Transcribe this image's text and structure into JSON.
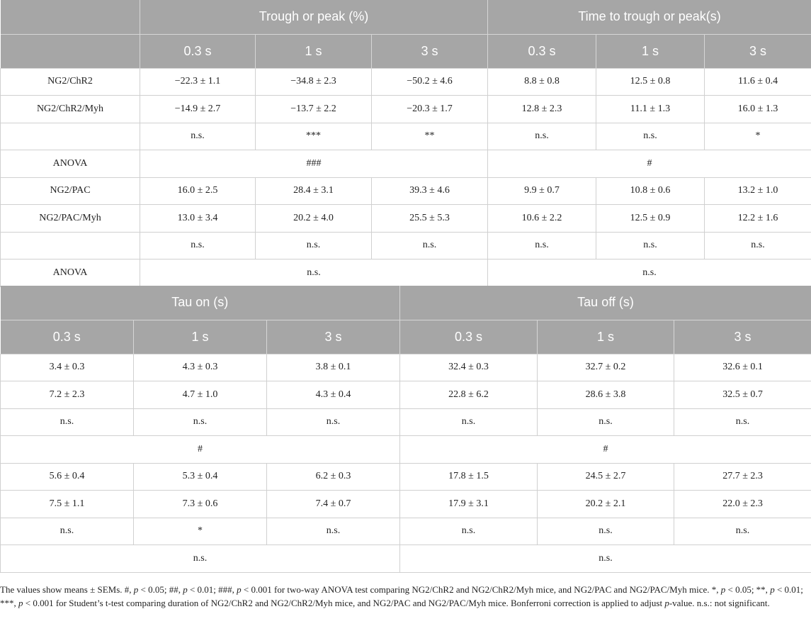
{
  "top_table": {
    "group_headers": [
      "Trough or peak (%)",
      "Time to trough or peak(s)"
    ],
    "sub_headers": [
      "0.3 s",
      "1 s",
      "3 s",
      "0.3 s",
      "1 s",
      "3 s"
    ],
    "rows": [
      {
        "label": "NG2/ChR2",
        "cells": [
          "−22.3 ± 1.1",
          "−34.8 ± 2.3",
          "−50.2 ± 4.6",
          "8.8 ± 0.8",
          "12.5 ± 0.8",
          "11.6 ± 0.4"
        ]
      },
      {
        "label": "NG2/ChR2/Myh",
        "cells": [
          "−14.9 ± 2.7",
          "−13.7 ± 2.2",
          "−20.3 ± 1.7",
          "12.8 ± 2.3",
          "11.1 ± 1.3",
          "16.0 ± 1.3"
        ]
      },
      {
        "label": "",
        "cells": [
          "n.s.",
          "***",
          "**",
          "n.s.",
          "n.s.",
          "*"
        ]
      },
      {
        "label": "ANOVA",
        "span_cells": [
          "###",
          "#"
        ]
      },
      {
        "label": "NG2/PAC",
        "cells": [
          "16.0 ± 2.5",
          "28.4 ± 3.1",
          "39.3 ± 4.6",
          "9.9 ± 0.7",
          "10.8 ± 0.6",
          "13.2 ± 1.0"
        ]
      },
      {
        "label": "NG2/PAC/Myh",
        "cells": [
          "13.0 ± 3.4",
          "20.2 ± 4.0",
          "25.5 ± 5.3",
          "10.6 ± 2.2",
          "12.5 ± 0.9",
          "12.2 ± 1.6"
        ]
      },
      {
        "label": "",
        "cells": [
          "n.s.",
          "n.s.",
          "n.s.",
          "n.s.",
          "n.s.",
          "n.s."
        ]
      },
      {
        "label": "ANOVA",
        "span_cells": [
          "n.s.",
          "n.s."
        ]
      }
    ]
  },
  "bottom_table": {
    "group_headers": [
      "Tau on (s)",
      "Tau off (s)"
    ],
    "sub_headers": [
      "0.3 s",
      "1 s",
      "3 s",
      "0.3 s",
      "1 s",
      "3 s"
    ],
    "rows": [
      {
        "cells": [
          "3.4 ± 0.3",
          "4.3 ± 0.3",
          "3.8 ± 0.1",
          "32.4 ± 0.3",
          "32.7 ± 0.2",
          "32.6 ± 0.1"
        ]
      },
      {
        "cells": [
          "7.2 ± 2.3",
          "4.7 ± 1.0",
          "4.3 ± 0.4",
          "22.8 ± 6.2",
          "28.6 ± 3.8",
          "32.5 ± 0.7"
        ]
      },
      {
        "cells": [
          "n.s.",
          "n.s.",
          "n.s.",
          "n.s.",
          "n.s.",
          "n.s."
        ]
      },
      {
        "span_cells": [
          "#",
          "#"
        ]
      },
      {
        "cells": [
          "5.6 ± 0.4",
          "5.3 ± 0.4",
          "6.2 ± 0.3",
          "17.8 ± 1.5",
          "24.5 ± 2.7",
          "27.7 ± 2.3"
        ]
      },
      {
        "cells": [
          "7.5 ± 1.1",
          "7.3 ± 0.6",
          "7.4 ± 0.7",
          "17.9 ± 3.1",
          "20.2 ± 2.1",
          "22.0 ± 2.3"
        ]
      },
      {
        "cells": [
          "n.s.",
          "*",
          "n.s.",
          "n.s.",
          "n.s.",
          "n.s."
        ]
      },
      {
        "span_cells": [
          "n.s.",
          "n.s."
        ]
      }
    ]
  },
  "footnote": {
    "p1": "The values show means ± SEMs. #, ",
    "p_sym": "p",
    "p2": " < 0.05; ##, ",
    "p3": " < 0.01; ###, ",
    "p4": " < 0.001 for two-way ANOVA test comparing NG2/ChR2 and NG2/ChR2/Myh mice, and NG2/PAC and NG2/PAC/Myh mice. *, ",
    "p5": " < 0.05; **, ",
    "p6": " < 0.01; ***, ",
    "p7": " < 0.001 for Student’s t-test comparing duration of NG2/ChR2 and NG2/ChR2/Myh mice, and NG2/PAC and NG2/PAC/Myh mice. Bonferroni correction is applied to adjust ",
    "p8": "-value. n.s.: not significant."
  }
}
